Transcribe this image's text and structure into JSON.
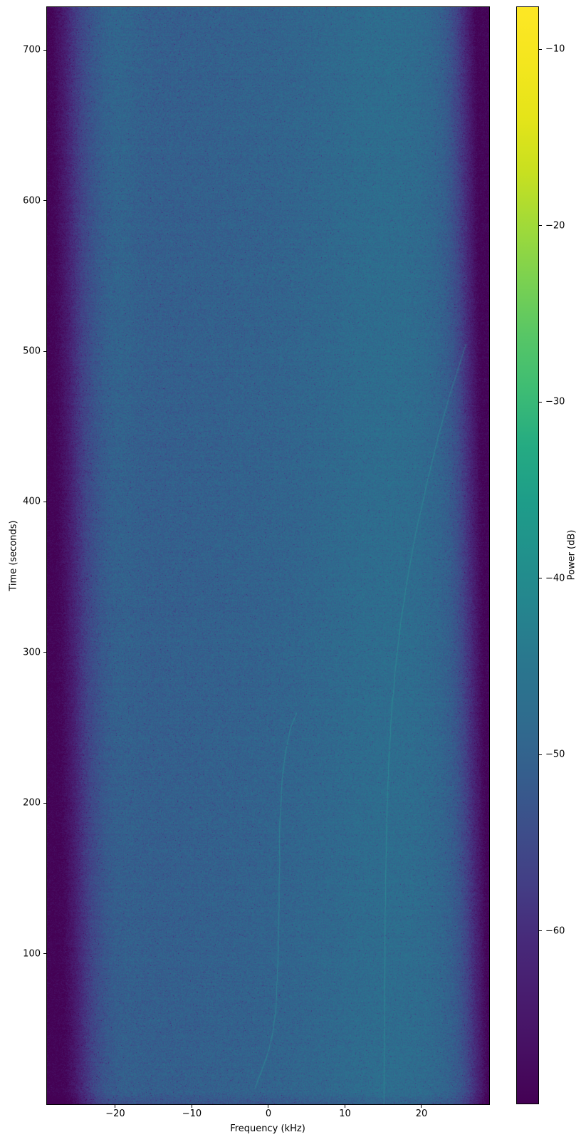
{
  "chart_data": {
    "type": "heatmap",
    "subtype": "spectrogram",
    "title": "",
    "xlabel": "Frequency (kHz)",
    "ylabel": "Time (seconds)",
    "colorbar_label": "Power (dB)",
    "xlim": [
      -28.93,
      28.84
    ],
    "ylim": [
      0,
      728.5
    ],
    "clim": [
      -69.8,
      -7.6
    ],
    "grid": false,
    "x_ticks": [
      {
        "v": -20,
        "label": "−20"
      },
      {
        "v": -10,
        "label": "−10"
      },
      {
        "v": 0,
        "label": "0"
      },
      {
        "v": 10,
        "label": "10"
      },
      {
        "v": 20,
        "label": "20"
      }
    ],
    "y_ticks": [
      {
        "v": 100,
        "label": "100"
      },
      {
        "v": 200,
        "label": "200"
      },
      {
        "v": 300,
        "label": "300"
      },
      {
        "v": 400,
        "label": "400"
      },
      {
        "v": 500,
        "label": "500"
      },
      {
        "v": 600,
        "label": "600"
      },
      {
        "v": 700,
        "label": "700"
      }
    ],
    "colorbar_ticks": [
      {
        "v": -10,
        "label": "−10"
      },
      {
        "v": -20,
        "label": "−20"
      },
      {
        "v": -30,
        "label": "−30"
      },
      {
        "v": -40,
        "label": "−40"
      },
      {
        "v": -50,
        "label": "−50"
      },
      {
        "v": -60,
        "label": "−60"
      }
    ],
    "colormap": {
      "name": "viridis",
      "stops": [
        [
          0.0,
          "#440154"
        ],
        [
          0.05,
          "#471063"
        ],
        [
          0.1,
          "#481d6f"
        ],
        [
          0.15,
          "#472a7a"
        ],
        [
          0.2,
          "#433e85"
        ],
        [
          0.25,
          "#3d4e8a"
        ],
        [
          0.3,
          "#355e8d"
        ],
        [
          0.35,
          "#2f6c8e"
        ],
        [
          0.4,
          "#2a768e"
        ],
        [
          0.45,
          "#25848e"
        ],
        [
          0.5,
          "#21918c"
        ],
        [
          0.55,
          "#1e9d89"
        ],
        [
          0.6,
          "#25ab82"
        ],
        [
          0.65,
          "#3dbc74"
        ],
        [
          0.7,
          "#57c666"
        ],
        [
          0.75,
          "#7ad151"
        ],
        [
          0.8,
          "#a0da39"
        ],
        [
          0.85,
          "#c8e020"
        ],
        [
          0.9,
          "#e5e419"
        ],
        [
          0.95,
          "#f4e61e"
        ],
        [
          1.0,
          "#fde725"
        ]
      ]
    },
    "noise_floor_db": -50,
    "noise_speckle_spread_db": 5.6,
    "freq_power_profile_db": [
      [
        -28.93,
        -69.5
      ],
      [
        -28.3,
        -68.8
      ],
      [
        -27.6,
        -66.5
      ],
      [
        -27.0,
        -64.5
      ],
      [
        -26.3,
        -61.5
      ],
      [
        -25.5,
        -58.5
      ],
      [
        -24.7,
        -56.0
      ],
      [
        -23.8,
        -54.0
      ],
      [
        -22.8,
        -52.3
      ],
      [
        -21.5,
        -51.0
      ],
      [
        -20.0,
        -50.6
      ],
      [
        -17.0,
        -50.7
      ],
      [
        -13.0,
        -50.5
      ],
      [
        -8.0,
        -50.3
      ],
      [
        -3.0,
        -50.0
      ],
      [
        0.0,
        -49.8
      ],
      [
        4.0,
        -49.5
      ],
      [
        8.0,
        -49.2
      ],
      [
        12.0,
        -48.9
      ],
      [
        16.0,
        -48.7
      ],
      [
        19.5,
        -48.7
      ],
      [
        21.5,
        -49.1
      ],
      [
        23.0,
        -49.9
      ],
      [
        24.3,
        -51.3
      ],
      [
        25.3,
        -53.5
      ],
      [
        26.2,
        -56.5
      ],
      [
        27.0,
        -60.0
      ],
      [
        27.8,
        -64.0
      ],
      [
        28.4,
        -67.5
      ],
      [
        28.84,
        -69.3
      ]
    ],
    "bright_bands": [
      {
        "center_khz": 15.0,
        "sigma_khz": 9.0,
        "gain_db": 1.25,
        "time_weight": "constant"
      },
      {
        "center_khz": -19.5,
        "sigma_khz": 2.6,
        "gain_db": 1.5,
        "time_weight": "late"
      }
    ],
    "traces": [
      {
        "name": "doppler-trace-main",
        "level_db": -43,
        "points_f_t": [
          [
            15.1,
            0
          ],
          [
            15.15,
            40
          ],
          [
            15.2,
            80
          ],
          [
            15.25,
            120
          ],
          [
            15.35,
            160
          ],
          [
            15.5,
            195
          ],
          [
            15.75,
            230
          ],
          [
            16.1,
            260
          ],
          [
            16.6,
            290
          ],
          [
            17.3,
            320
          ],
          [
            18.2,
            350
          ],
          [
            19.3,
            380
          ],
          [
            20.6,
            410
          ],
          [
            22.0,
            440
          ],
          [
            23.5,
            468
          ],
          [
            24.9,
            490
          ],
          [
            25.8,
            505
          ]
        ]
      },
      {
        "name": "doppler-trace-weak",
        "level_db": -45,
        "points_f_t": [
          [
            -1.8,
            10
          ],
          [
            -0.9,
            22
          ],
          [
            0.0,
            35
          ],
          [
            0.6,
            48
          ],
          [
            1.0,
            65
          ],
          [
            1.25,
            95
          ],
          [
            1.4,
            140
          ],
          [
            1.5,
            185
          ],
          [
            1.75,
            212
          ],
          [
            2.2,
            233
          ],
          [
            2.9,
            250
          ],
          [
            3.7,
            260
          ]
        ]
      }
    ]
  }
}
